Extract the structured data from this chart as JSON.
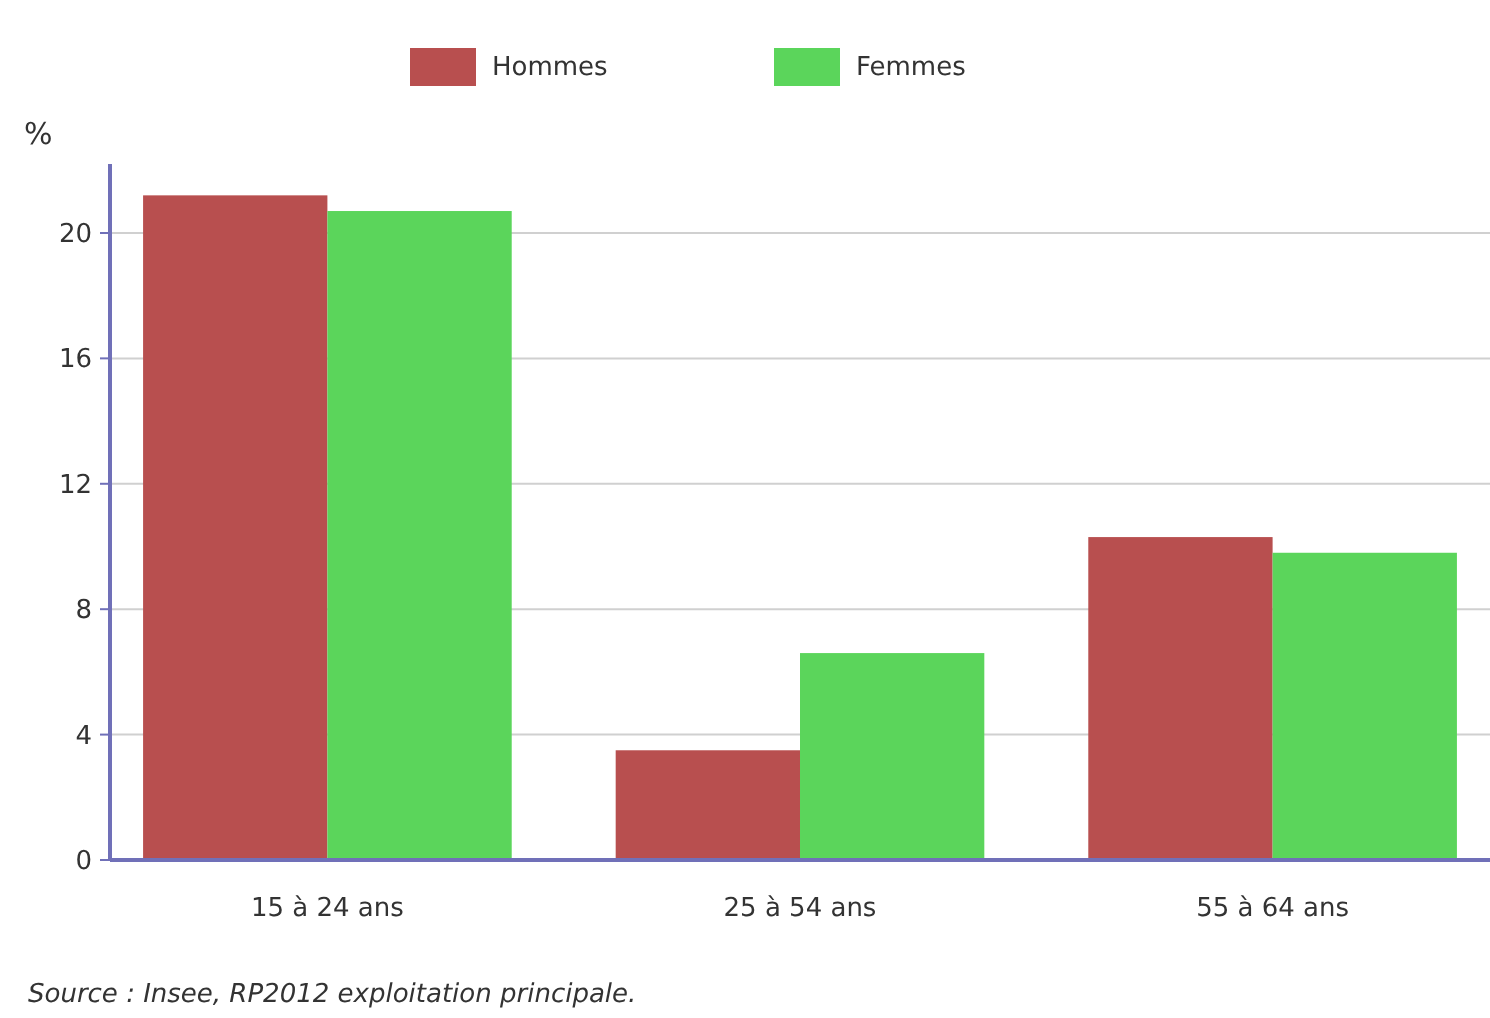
{
  "chart_data": {
    "type": "bar",
    "ylabel": "%",
    "categories": [
      "15 à 24 ans",
      "25 à 54 ans",
      "55 à 64 ans"
    ],
    "series": [
      {
        "name": "Hommes",
        "color": "#b84f4f",
        "values": [
          21.2,
          3.5,
          10.3
        ]
      },
      {
        "name": "Femmes",
        "color": "#5bd55b",
        "values": [
          20.7,
          6.6,
          9.8
        ]
      }
    ],
    "ylim": [
      0,
      22.2
    ],
    "yticks": [
      0,
      4,
      8,
      12,
      16,
      20
    ],
    "grid": "y",
    "legend": "top",
    "annotations": [
      "Source : Insee, RP2012 exploitation principale."
    ]
  }
}
